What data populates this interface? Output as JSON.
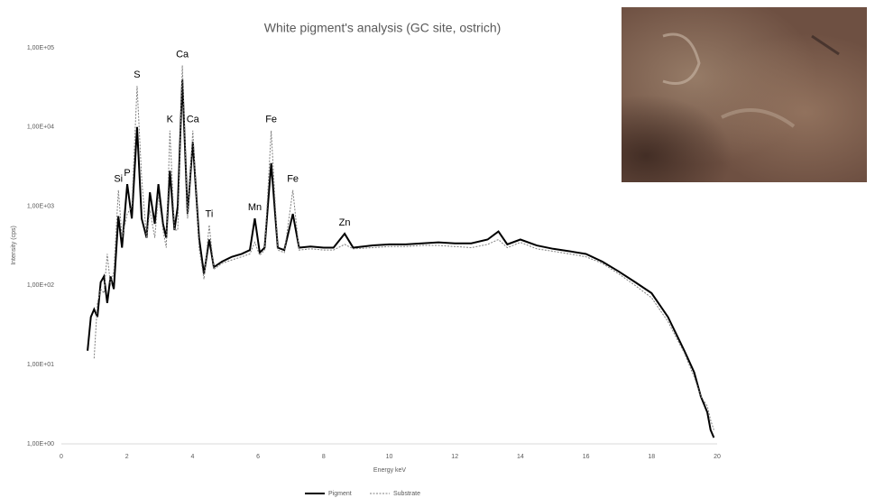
{
  "chart_data": {
    "type": "line",
    "title": "White pigment's analysis (GC site, ostrich)",
    "x_label": "Energy keV",
    "y_label": "Intensity (cps)",
    "log_y": true,
    "legend": "bottom",
    "xlim": [
      0,
      20
    ],
    "xticks": [
      0,
      2,
      4,
      6,
      8,
      10,
      12,
      14,
      16,
      18,
      20
    ],
    "ylim": [
      1,
      100000
    ],
    "yticks": [
      {
        "value": 1,
        "label": "1,00E+00"
      },
      {
        "value": 10,
        "label": "1,00E+01"
      },
      {
        "value": 100,
        "label": "1,00E+02"
      },
      {
        "value": 1000,
        "label": "1,00E+03"
      },
      {
        "value": 10000,
        "label": "1,00E+04"
      },
      {
        "value": 100000,
        "label": "1,00E+05"
      }
    ],
    "x": [
      0.8,
      0.9,
      1.0,
      1.1,
      1.2,
      1.3,
      1.4,
      1.5,
      1.6,
      1.74,
      1.85,
      2.01,
      2.15,
      2.31,
      2.45,
      2.6,
      2.7,
      2.85,
      2.96,
      3.1,
      3.2,
      3.31,
      3.45,
      3.55,
      3.69,
      3.85,
      4.01,
      4.2,
      4.35,
      4.51,
      4.65,
      4.9,
      5.2,
      5.5,
      5.75,
      5.9,
      6.05,
      6.2,
      6.4,
      6.6,
      6.8,
      7.06,
      7.25,
      7.6,
      8.0,
      8.3,
      8.64,
      8.9,
      9.5,
      10,
      10.5,
      11,
      11.5,
      12,
      12.5,
      13,
      13.33,
      13.6,
      14,
      14.5,
      15,
      15.5,
      16,
      16.5,
      17,
      17.5,
      18,
      18.5,
      19,
      19.3,
      19.5,
      19.7,
      19.8,
      19.9
    ],
    "series": [
      {
        "name": "Pigment",
        "color": "#000000",
        "dash": "none",
        "width": 2,
        "values": [
          15,
          40,
          50,
          40,
          110,
          130,
          60,
          130,
          90,
          750,
          300,
          1900,
          700,
          10000,
          700,
          400,
          1500,
          600,
          1900,
          600,
          400,
          2800,
          500,
          1000,
          40000,
          800,
          6500,
          400,
          140,
          380,
          170,
          200,
          230,
          250,
          280,
          700,
          260,
          300,
          3500,
          300,
          280,
          800,
          300,
          310,
          300,
          300,
          450,
          300,
          320,
          330,
          330,
          340,
          350,
          340,
          340,
          380,
          480,
          330,
          380,
          320,
          290,
          270,
          250,
          200,
          150,
          110,
          80,
          40,
          15,
          8,
          4,
          2.5,
          1.5,
          1.2
        ]
      },
      {
        "name": "Substrate",
        "color": "#7f7f7f",
        "dash": "2 1.5",
        "width": 1,
        "values": [
          null,
          null,
          12,
          60,
          90,
          80,
          250,
          100,
          150,
          1600,
          400,
          800,
          1000,
          33000,
          2200,
          400,
          900,
          400,
          1400,
          500,
          300,
          9000,
          500,
          500,
          60000,
          700,
          9000,
          300,
          120,
          580,
          160,
          190,
          210,
          230,
          250,
          350,
          240,
          280,
          9000,
          280,
          260,
          1600,
          280,
          290,
          280,
          280,
          330,
          290,
          300,
          310,
          310,
          320,
          320,
          310,
          300,
          330,
          380,
          300,
          350,
          290,
          270,
          250,
          230,
          190,
          140,
          100,
          70,
          35,
          14,
          7,
          4,
          3,
          2,
          1.5
        ]
      }
    ],
    "annotations": [
      {
        "text": "Si",
        "x": 1.74,
        "y": 1600
      },
      {
        "text": "P",
        "x": 2.01,
        "y": 1900
      },
      {
        "text": "S",
        "x": 2.31,
        "y": 33000
      },
      {
        "text": "K",
        "x": 3.31,
        "y": 9000
      },
      {
        "text": "Ca",
        "x": 3.69,
        "y": 60000
      },
      {
        "text": "Ca",
        "x": 4.01,
        "y": 9000
      },
      {
        "text": "Ti",
        "x": 4.51,
        "y": 580
      },
      {
        "text": "Mn",
        "x": 5.9,
        "y": 700
      },
      {
        "text": "Fe",
        "x": 6.4,
        "y": 9000
      },
      {
        "text": "Fe",
        "x": 7.06,
        "y": 1600
      },
      {
        "text": "Zn",
        "x": 8.64,
        "y": 450
      }
    ]
  }
}
